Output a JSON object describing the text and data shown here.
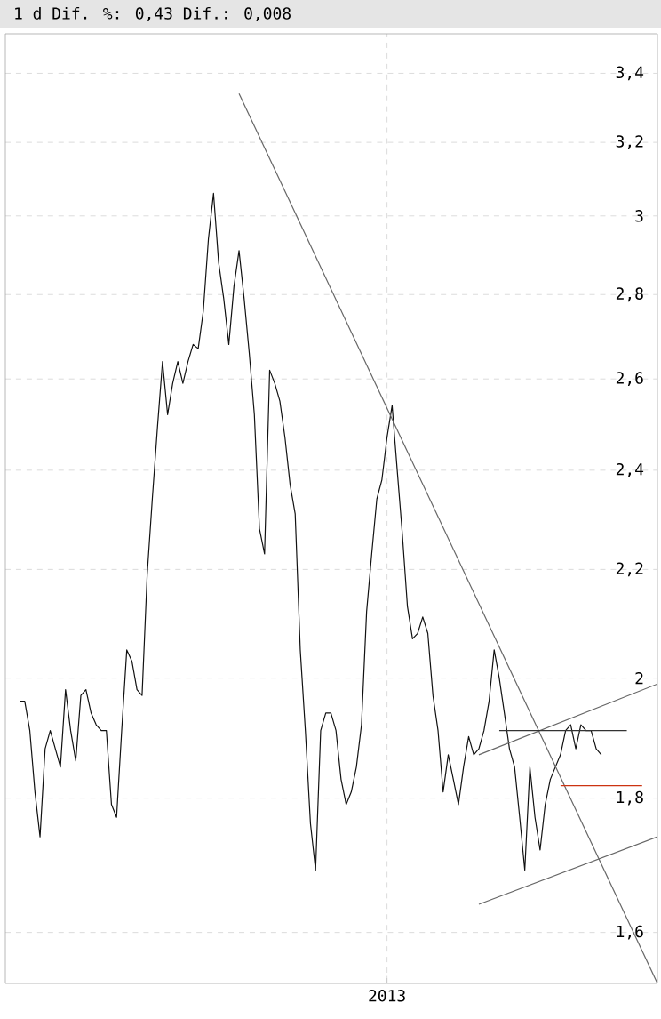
{
  "chart_data": {
    "type": "line",
    "title": "1 d Dif. %: 0,43 Dif.: 0,008",
    "log": true,
    "grid": true,
    "marker": "none",
    "line_style": "solid",
    "ylim": [
      1.53,
      3.52
    ],
    "categories": [
      null,
      null,
      null,
      null,
      null,
      null,
      null,
      null,
      null,
      null,
      null,
      null,
      null,
      null,
      null,
      null,
      null,
      null,
      null,
      null,
      null,
      null,
      null,
      null,
      null,
      null,
      null,
      null,
      null,
      null,
      null,
      null,
      null,
      null,
      null,
      null,
      null,
      null,
      null,
      null,
      null,
      null,
      null,
      null,
      null,
      null,
      null,
      null,
      null,
      null,
      null,
      null,
      null,
      null,
      null,
      null,
      null,
      null,
      null,
      null,
      null,
      null,
      null,
      null,
      null,
      null,
      null,
      null,
      null,
      null,
      null,
      null,
      "2013",
      null,
      null,
      null,
      null,
      null,
      null,
      null,
      null,
      null,
      null,
      null,
      null,
      null,
      null,
      null,
      null,
      null,
      null,
      null,
      null,
      null,
      null,
      null,
      null,
      null,
      null,
      null,
      null,
      null,
      null,
      null,
      null,
      null,
      null,
      null,
      null,
      null,
      null,
      null,
      null,
      null,
      null,
      null,
      null,
      null,
      null,
      null,
      null,
      null,
      null,
      null,
      null,
      null
    ],
    "yticks": [
      {
        "value": 1.6,
        "label": "1,6"
      },
      {
        "value": 1.8,
        "label": "1,8"
      },
      {
        "value": 2,
        "label": "2"
      },
      {
        "value": 2.2,
        "label": "2,2"
      },
      {
        "value": 2.4,
        "label": "2,4"
      },
      {
        "value": 2.6,
        "label": "2,6"
      },
      {
        "value": 2.8,
        "label": "2,8"
      },
      {
        "value": 3,
        "label": "3"
      },
      {
        "value": 3.2,
        "label": "3,2"
      },
      {
        "value": 3.4,
        "label": "3,4"
      }
    ],
    "series": [
      {
        "color": "#111111",
        "values": [
          1.96,
          1.96,
          1.91,
          1.81,
          1.74,
          1.88,
          1.91,
          1.88,
          1.85,
          1.98,
          1.91,
          1.86,
          1.97,
          1.98,
          1.94,
          1.92,
          1.91,
          1.91,
          1.79,
          1.77,
          1.91,
          2.05,
          2.03,
          1.98,
          1.97,
          2.19,
          2.34,
          2.49,
          2.64,
          2.52,
          2.59,
          2.64,
          2.59,
          2.64,
          2.68,
          2.67,
          2.76,
          2.94,
          3.06,
          2.88,
          2.79,
          2.68,
          2.82,
          2.91,
          2.79,
          2.66,
          2.52,
          2.28,
          2.23,
          2.62,
          2.59,
          2.55,
          2.47,
          2.37,
          2.31,
          2.05,
          1.91,
          1.76,
          1.69,
          1.91,
          1.94,
          1.94,
          1.91,
          1.83,
          1.79,
          1.81,
          1.85,
          1.92,
          2.12,
          2.23,
          2.34,
          2.38,
          2.47,
          2.54,
          2.4,
          2.27,
          2.13,
          2.07,
          2.08,
          2.11,
          2.08,
          1.97,
          1.91,
          1.81,
          1.87,
          1.83,
          1.79,
          1.85,
          1.9,
          1.87,
          1.88,
          1.91,
          1.96,
          2.05,
          2.0,
          1.94,
          1.88,
          1.85,
          1.77,
          1.69,
          1.85,
          1.77,
          1.72,
          1.79,
          1.83,
          1.85,
          1.87,
          1.91,
          1.92,
          1.88,
          1.92,
          1.91,
          1.91,
          1.88,
          1.87,
          null,
          null,
          null,
          null,
          null,
          null,
          null,
          null,
          null,
          null,
          null
        ]
      },
      {
        "type": "line",
        "color": "#666666",
        "values": [
          null,
          null,
          null,
          null,
          null,
          null,
          null,
          null,
          null,
          null,
          null,
          null,
          null,
          null,
          null,
          null,
          null,
          null,
          null,
          null,
          null,
          null,
          null,
          null,
          null,
          null,
          null,
          null,
          null,
          null,
          null,
          null,
          null,
          null,
          null,
          null,
          null,
          null,
          null,
          null,
          null,
          null,
          null,
          3.34,
          null,
          null,
          null,
          null,
          null,
          null,
          null,
          null,
          null,
          null,
          null,
          null,
          null,
          null,
          null,
          null,
          null,
          null,
          null,
          null,
          null,
          null,
          null,
          null,
          null,
          null,
          null,
          null,
          null,
          null,
          null,
          null,
          null,
          null,
          null,
          null,
          null,
          null,
          null,
          null,
          null,
          null,
          null,
          null,
          null,
          null,
          null,
          null,
          null,
          null,
          null,
          null,
          null,
          null,
          null,
          null,
          null,
          null,
          null,
          null,
          null,
          null,
          null,
          null,
          null,
          null,
          null,
          null,
          null,
          null,
          null,
          null,
          null,
          null,
          null,
          null,
          null,
          null,
          null,
          null,
          null,
          1.53
        ]
      },
      {
        "type": "line",
        "color": "#666666",
        "values": [
          null,
          null,
          null,
          null,
          null,
          null,
          null,
          null,
          null,
          null,
          null,
          null,
          null,
          null,
          null,
          null,
          null,
          null,
          null,
          null,
          null,
          null,
          null,
          null,
          null,
          null,
          null,
          null,
          null,
          null,
          null,
          null,
          null,
          null,
          null,
          null,
          null,
          null,
          null,
          null,
          null,
          null,
          null,
          null,
          null,
          null,
          null,
          null,
          null,
          null,
          null,
          null,
          null,
          null,
          null,
          null,
          null,
          null,
          null,
          null,
          null,
          null,
          null,
          null,
          null,
          null,
          null,
          null,
          null,
          null,
          null,
          null,
          null,
          null,
          null,
          null,
          null,
          null,
          null,
          null,
          null,
          null,
          null,
          null,
          null,
          null,
          null,
          null,
          null,
          null,
          1.87,
          null,
          null,
          null,
          null,
          null,
          null,
          null,
          null,
          null,
          null,
          null,
          null,
          null,
          null,
          null,
          null,
          null,
          null,
          null,
          null,
          null,
          null,
          null,
          null,
          null,
          null,
          null,
          null,
          null,
          null,
          null,
          null,
          null,
          null,
          1.99
        ]
      },
      {
        "type": "line",
        "color": "#666666",
        "values": [
          null,
          null,
          null,
          null,
          null,
          null,
          null,
          null,
          null,
          null,
          null,
          null,
          null,
          null,
          null,
          null,
          null,
          null,
          null,
          null,
          null,
          null,
          null,
          null,
          null,
          null,
          null,
          null,
          null,
          null,
          null,
          null,
          null,
          null,
          null,
          null,
          null,
          null,
          null,
          null,
          null,
          null,
          null,
          null,
          null,
          null,
          null,
          null,
          null,
          null,
          null,
          null,
          null,
          null,
          null,
          null,
          null,
          null,
          null,
          null,
          null,
          null,
          null,
          null,
          null,
          null,
          null,
          null,
          null,
          null,
          null,
          null,
          null,
          null,
          null,
          null,
          null,
          null,
          null,
          null,
          null,
          null,
          null,
          null,
          null,
          null,
          null,
          null,
          null,
          null,
          1.64,
          null,
          null,
          null,
          null,
          null,
          null,
          null,
          null,
          null,
          null,
          null,
          null,
          null,
          null,
          null,
          null,
          null,
          null,
          null,
          null,
          null,
          null,
          null,
          null,
          null,
          null,
          null,
          null,
          null,
          null,
          null,
          null,
          null,
          null,
          1.74
        ]
      },
      {
        "type": "line",
        "color": "#333333",
        "values": [
          null,
          null,
          null,
          null,
          null,
          null,
          null,
          null,
          null,
          null,
          null,
          null,
          null,
          null,
          null,
          null,
          null,
          null,
          null,
          null,
          null,
          null,
          null,
          null,
          null,
          null,
          null,
          null,
          null,
          null,
          null,
          null,
          null,
          null,
          null,
          null,
          null,
          null,
          null,
          null,
          null,
          null,
          null,
          null,
          null,
          null,
          null,
          null,
          null,
          null,
          null,
          null,
          null,
          null,
          null,
          null,
          null,
          null,
          null,
          null,
          null,
          null,
          null,
          null,
          null,
          null,
          null,
          null,
          null,
          null,
          null,
          null,
          null,
          null,
          null,
          null,
          null,
          null,
          null,
          null,
          null,
          null,
          null,
          null,
          null,
          null,
          null,
          null,
          null,
          null,
          null,
          null,
          null,
          null,
          1.91,
          null,
          null,
          null,
          null,
          null,
          null,
          null,
          null,
          null,
          null,
          null,
          null,
          null,
          null,
          null,
          null,
          null,
          null,
          null,
          null,
          null,
          null,
          null,
          null,
          1.91,
          null,
          null,
          null,
          null,
          null,
          null
        ]
      },
      {
        "type": "line",
        "color": "#cc3311",
        "values": [
          null,
          null,
          null,
          null,
          null,
          null,
          null,
          null,
          null,
          null,
          null,
          null,
          null,
          null,
          null,
          null,
          null,
          null,
          null,
          null,
          null,
          null,
          null,
          null,
          null,
          null,
          null,
          null,
          null,
          null,
          null,
          null,
          null,
          null,
          null,
          null,
          null,
          null,
          null,
          null,
          null,
          null,
          null,
          null,
          null,
          null,
          null,
          null,
          null,
          null,
          null,
          null,
          null,
          null,
          null,
          null,
          null,
          null,
          null,
          null,
          null,
          null,
          null,
          null,
          null,
          null,
          null,
          null,
          null,
          null,
          null,
          null,
          null,
          null,
          null,
          null,
          null,
          null,
          null,
          null,
          null,
          null,
          null,
          null,
          null,
          null,
          null,
          null,
          null,
          null,
          null,
          null,
          null,
          null,
          null,
          null,
          null,
          null,
          null,
          null,
          null,
          null,
          null,
          null,
          null,
          null,
          1.82,
          null,
          null,
          null,
          null,
          null,
          null,
          null,
          null,
          null,
          null,
          null,
          null,
          null,
          null,
          null,
          1.82,
          null,
          null,
          null
        ]
      }
    ]
  }
}
